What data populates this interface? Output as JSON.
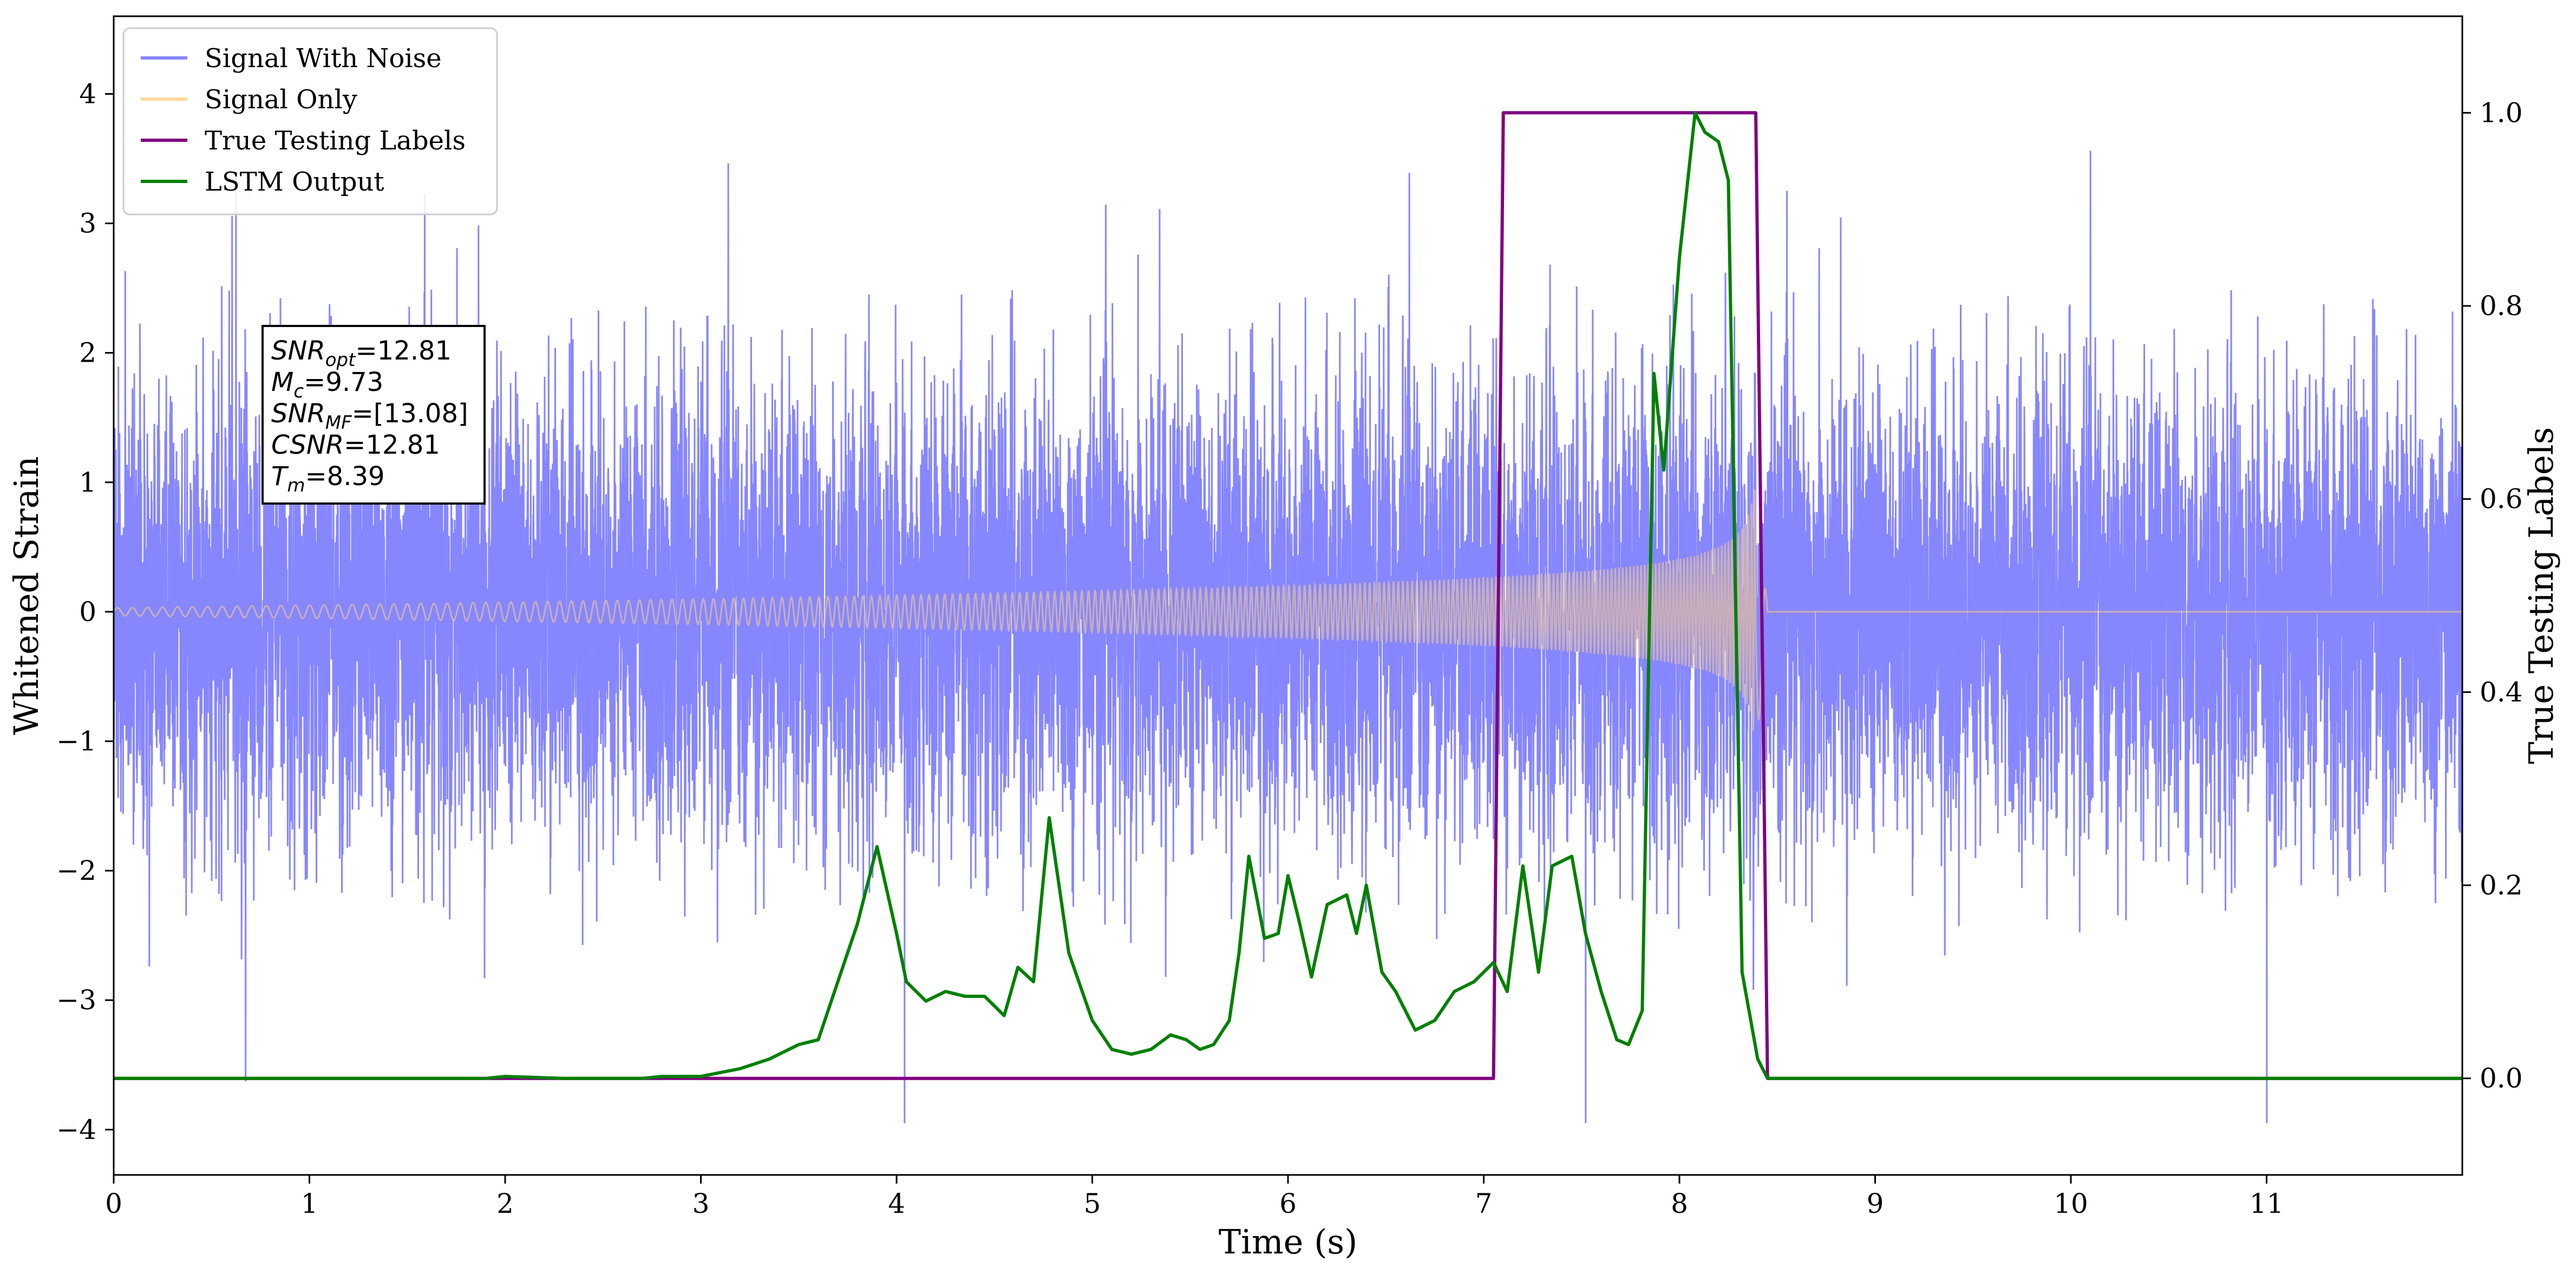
{
  "chart_data": {
    "type": "line",
    "xlabel": "Time (s)",
    "ylabel": "Whitened Strain",
    "y2label": "True Testing Labels",
    "xlim": [
      0,
      12.0
    ],
    "ylim": [
      -4.35,
      4.6
    ],
    "y2lim": [
      -0.1,
      1.1
    ],
    "x_ticks": [
      0,
      1,
      2,
      3,
      4,
      5,
      6,
      7,
      8,
      9,
      10,
      11
    ],
    "y_ticks": [
      -4,
      -3,
      -2,
      -1,
      0,
      1,
      2,
      3,
      4
    ],
    "y_tick_labels": [
      "−4",
      "−3",
      "−2",
      "−1",
      "0",
      "1",
      "2",
      "3",
      "4"
    ],
    "y2_ticks": [
      0.0,
      0.2,
      0.4,
      0.6,
      0.8,
      1.0
    ],
    "y2_tick_labels": [
      "0.0",
      "0.2",
      "0.4",
      "0.6",
      "0.8",
      "1.0"
    ],
    "grid": false,
    "legend_position": "top-left",
    "series": [
      {
        "name": "Signal With Noise",
        "color": "#7f7fff",
        "axis": "left",
        "description": "dense gaussian-like noise around 0, std about 0.9, spikes up to about 4.2 and down to about -3.95"
      },
      {
        "name": "Signal Only",
        "color": "#ffd17f",
        "axis": "left",
        "chirp": {
          "start_amplitude": 0.03,
          "peak_amplitude": 1.15,
          "merger_time": 8.39,
          "end_time": 8.45,
          "start_cycles_per_s": 13,
          "end_cycles_per_s": 60
        }
      },
      {
        "name": "True Testing Labels",
        "color": "#800080",
        "axis": "right",
        "x": [
          0,
          7.05,
          7.1,
          8.39,
          8.45,
          12.0
        ],
        "y": [
          0,
          0,
          1,
          1,
          0,
          0
        ]
      },
      {
        "name": "LSTM Output",
        "color": "#008000",
        "axis": "right",
        "x": [
          0,
          0.25,
          0.5,
          1.0,
          1.5,
          1.9,
          2.0,
          2.3,
          2.7,
          2.8,
          3.0,
          3.2,
          3.35,
          3.5,
          3.6,
          3.7,
          3.8,
          3.9,
          4.0,
          4.05,
          4.15,
          4.25,
          4.35,
          4.45,
          4.55,
          4.62,
          4.7,
          4.78,
          4.88,
          5.0,
          5.1,
          5.2,
          5.3,
          5.4,
          5.48,
          5.55,
          5.62,
          5.7,
          5.75,
          5.8,
          5.88,
          5.95,
          6.0,
          6.06,
          6.12,
          6.2,
          6.3,
          6.35,
          6.4,
          6.48,
          6.55,
          6.65,
          6.75,
          6.85,
          6.95,
          7.05,
          7.12,
          7.2,
          7.28,
          7.35,
          7.45,
          7.52,
          7.6,
          7.68,
          7.74,
          7.81,
          7.87,
          7.92,
          8.0,
          8.08,
          8.13,
          8.2,
          8.25,
          8.32,
          8.4,
          8.45,
          12.0
        ],
        "y": [
          0.0,
          0.0,
          0.0,
          0.0,
          0.0,
          0.0,
          0.002,
          0.0,
          0.0,
          0.002,
          0.002,
          0.01,
          0.02,
          0.035,
          0.04,
          0.1,
          0.16,
          0.24,
          0.15,
          0.1,
          0.08,
          0.09,
          0.085,
          0.085,
          0.065,
          0.115,
          0.1,
          0.27,
          0.13,
          0.06,
          0.03,
          0.025,
          0.03,
          0.045,
          0.04,
          0.03,
          0.035,
          0.06,
          0.13,
          0.23,
          0.145,
          0.15,
          0.21,
          0.16,
          0.105,
          0.18,
          0.19,
          0.15,
          0.2,
          0.11,
          0.09,
          0.05,
          0.06,
          0.09,
          0.1,
          0.12,
          0.09,
          0.22,
          0.11,
          0.22,
          0.23,
          0.15,
          0.09,
          0.04,
          0.035,
          0.07,
          0.73,
          0.63,
          0.85,
          1.0,
          0.98,
          0.97,
          0.93,
          0.11,
          0.02,
          0.0,
          0.0
        ]
      }
    ],
    "annotation": {
      "lines": [
        {
          "main": "SNR",
          "sub": "opt",
          "rest": "=12.81"
        },
        {
          "main": "M",
          "sub": "c",
          "rest": "=9.73"
        },
        {
          "main": "SNR",
          "sub": "MF",
          "rest": "=[13.08]"
        },
        {
          "main": "CSNR",
          "sub": "",
          "rest": "=12.81"
        },
        {
          "main": "T",
          "sub": "m",
          "rest": "=8.39"
        }
      ]
    }
  }
}
